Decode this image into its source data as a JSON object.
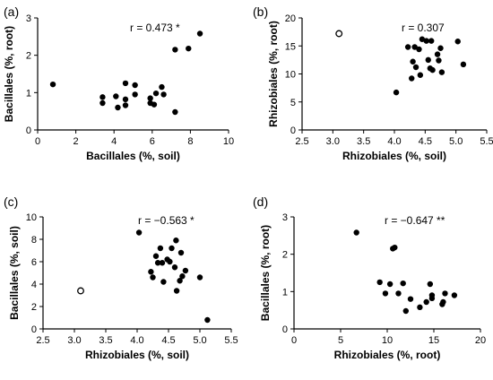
{
  "chart_data": [
    {
      "panel": "(a)",
      "type": "scatter",
      "annotation": "r = 0.473 *",
      "xlabel": "Bacillales (%, soil)",
      "ylabel": "Bacillales (%, root)",
      "xlim": [
        0,
        10
      ],
      "ylim": [
        0,
        3
      ],
      "xticks": [
        "0",
        "2",
        "4",
        "6",
        "8",
        "10"
      ],
      "yticks": [
        "0",
        "1",
        "2",
        "3"
      ],
      "points": [
        {
          "x": 0.8,
          "y": 1.22
        },
        {
          "x": 3.4,
          "y": 0.88
        },
        {
          "x": 3.4,
          "y": 0.72
        },
        {
          "x": 4.1,
          "y": 0.9
        },
        {
          "x": 4.2,
          "y": 0.6
        },
        {
          "x": 4.6,
          "y": 1.25
        },
        {
          "x": 4.6,
          "y": 0.82
        },
        {
          "x": 4.6,
          "y": 0.66
        },
        {
          "x": 5.1,
          "y": 1.2
        },
        {
          "x": 5.1,
          "y": 0.95
        },
        {
          "x": 5.9,
          "y": 0.85
        },
        {
          "x": 5.9,
          "y": 0.72
        },
        {
          "x": 6.1,
          "y": 0.68
        },
        {
          "x": 6.2,
          "y": 0.98
        },
        {
          "x": 6.5,
          "y": 1.15
        },
        {
          "x": 6.6,
          "y": 0.95
        },
        {
          "x": 7.2,
          "y": 0.48
        },
        {
          "x": 7.2,
          "y": 2.15
        },
        {
          "x": 7.9,
          "y": 2.18
        },
        {
          "x": 8.5,
          "y": 2.58
        }
      ]
    },
    {
      "panel": "(b)",
      "type": "scatter",
      "annotation": "r = 0.307",
      "xlabel": "Rhizobiales (%, soil)",
      "ylabel": "Rhizobiales (%, root)",
      "xlim": [
        2.5,
        5.5
      ],
      "ylim": [
        0,
        20
      ],
      "xticks": [
        "2.5",
        "3.0",
        "3.5",
        "4.0",
        "4.5",
        "5.0",
        "5.5"
      ],
      "yticks": [
        "0",
        "5",
        "10",
        "15",
        "20"
      ],
      "points": [
        {
          "x": 3.1,
          "y": 17.2,
          "open": true
        },
        {
          "x": 4.03,
          "y": 6.7
        },
        {
          "x": 4.22,
          "y": 14.8
        },
        {
          "x": 4.28,
          "y": 9.2
        },
        {
          "x": 4.3,
          "y": 12.2
        },
        {
          "x": 4.33,
          "y": 14.8
        },
        {
          "x": 4.35,
          "y": 11.2
        },
        {
          "x": 4.4,
          "y": 14.4
        },
        {
          "x": 4.42,
          "y": 9.8
        },
        {
          "x": 4.45,
          "y": 16.2
        },
        {
          "x": 4.52,
          "y": 15.9
        },
        {
          "x": 4.55,
          "y": 12.5
        },
        {
          "x": 4.58,
          "y": 11.0
        },
        {
          "x": 4.6,
          "y": 15.9
        },
        {
          "x": 4.62,
          "y": 10.7
        },
        {
          "x": 4.7,
          "y": 13.5
        },
        {
          "x": 4.72,
          "y": 12.4
        },
        {
          "x": 4.75,
          "y": 14.6
        },
        {
          "x": 4.77,
          "y": 10.3
        },
        {
          "x": 5.03,
          "y": 15.8
        },
        {
          "x": 5.12,
          "y": 11.7
        }
      ]
    },
    {
      "panel": "(c)",
      "type": "scatter",
      "annotation": "r = −0.563 *",
      "xlabel": "Rhizobiales (%, soil)",
      "ylabel": "Bacillales (%, soil)",
      "xlim": [
        2.5,
        5.5
      ],
      "ylim": [
        0,
        10
      ],
      "xticks": [
        "2.5",
        "3.0",
        "3.5",
        "4.0",
        "4.5",
        "5.0",
        "5.5"
      ],
      "yticks": [
        "0",
        "2",
        "4",
        "6",
        "8",
        "10"
      ],
      "points": [
        {
          "x": 3.1,
          "y": 3.4,
          "open": true
        },
        {
          "x": 4.03,
          "y": 8.6
        },
        {
          "x": 4.22,
          "y": 5.1
        },
        {
          "x": 4.25,
          "y": 4.6
        },
        {
          "x": 4.3,
          "y": 6.5
        },
        {
          "x": 4.33,
          "y": 5.9
        },
        {
          "x": 4.37,
          "y": 7.2
        },
        {
          "x": 4.4,
          "y": 5.9
        },
        {
          "x": 4.42,
          "y": 4.2
        },
        {
          "x": 4.48,
          "y": 6.2
        },
        {
          "x": 4.52,
          "y": 6.0
        },
        {
          "x": 4.55,
          "y": 7.2
        },
        {
          "x": 4.6,
          "y": 5.5
        },
        {
          "x": 4.62,
          "y": 7.9
        },
        {
          "x": 4.63,
          "y": 3.4
        },
        {
          "x": 4.68,
          "y": 4.3
        },
        {
          "x": 4.7,
          "y": 6.8
        },
        {
          "x": 4.72,
          "y": 4.7
        },
        {
          "x": 4.77,
          "y": 5.2
        },
        {
          "x": 5.0,
          "y": 4.6
        },
        {
          "x": 5.12,
          "y": 0.8
        }
      ]
    },
    {
      "panel": "(d)",
      "type": "scatter",
      "annotation": "r = −0.647 **",
      "xlabel": "Rhizobiales (%, root)",
      "ylabel": "Bacillales (%, root)",
      "xlim": [
        0,
        20
      ],
      "ylim": [
        0,
        3
      ],
      "xticks": [
        "0",
        "5",
        "10",
        "15",
        "20"
      ],
      "yticks": [
        "0",
        "1",
        "2",
        "3"
      ],
      "points": [
        {
          "x": 6.7,
          "y": 2.58
        },
        {
          "x": 9.2,
          "y": 1.25
        },
        {
          "x": 9.8,
          "y": 0.95
        },
        {
          "x": 10.3,
          "y": 1.2
        },
        {
          "x": 10.6,
          "y": 2.15
        },
        {
          "x": 10.8,
          "y": 2.18
        },
        {
          "x": 11.2,
          "y": 0.95
        },
        {
          "x": 11.7,
          "y": 1.22
        },
        {
          "x": 12.0,
          "y": 0.48
        },
        {
          "x": 12.5,
          "y": 0.8
        },
        {
          "x": 13.5,
          "y": 0.58
        },
        {
          "x": 14.2,
          "y": 0.72
        },
        {
          "x": 14.6,
          "y": 1.2
        },
        {
          "x": 14.8,
          "y": 0.9
        },
        {
          "x": 14.8,
          "y": 0.82
        },
        {
          "x": 15.9,
          "y": 0.66
        },
        {
          "x": 16.0,
          "y": 0.72
        },
        {
          "x": 16.2,
          "y": 0.95
        },
        {
          "x": 17.2,
          "y": 0.9
        }
      ]
    }
  ]
}
